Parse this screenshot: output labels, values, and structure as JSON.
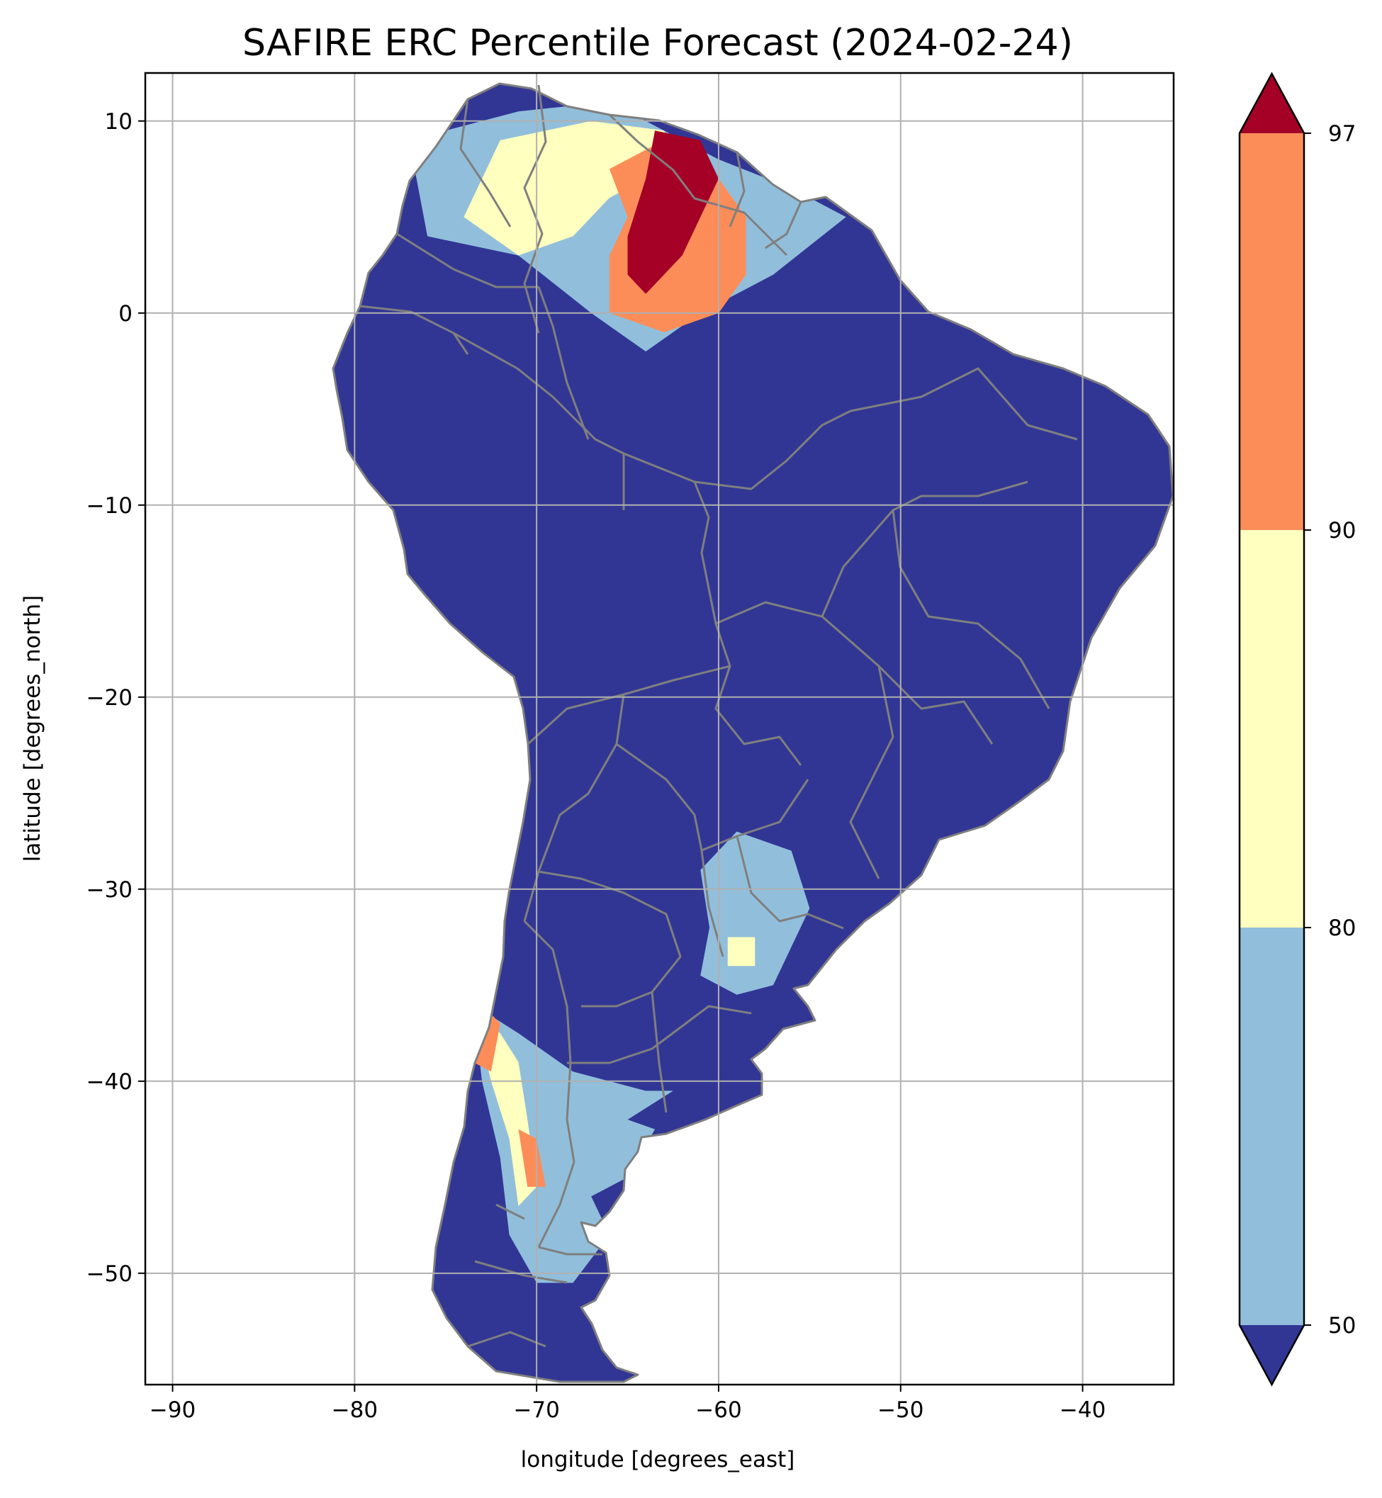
{
  "title": "SAFIRE ERC Percentile Forecast (2024-02-24)",
  "axes": {
    "xlabel": "longitude [degrees_east]",
    "ylabel": "latitude [degrees_north]",
    "xlim": [
      -91.5,
      -35
    ],
    "ylim": [
      -55.8,
      12.5
    ],
    "xticks": [
      -90,
      -80,
      -70,
      -60,
      -50,
      -40
    ],
    "yticks": [
      10,
      0,
      -10,
      -20,
      -30,
      -40,
      -50
    ],
    "xtick_labels": [
      "−90",
      "−80",
      "−70",
      "−60",
      "−50",
      "−40"
    ],
    "ytick_labels": [
      "10",
      "0",
      "−10",
      "−20",
      "−30",
      "−40",
      "−50"
    ],
    "grid": true
  },
  "colorbar": {
    "tick_labels": [
      "50",
      "80",
      "90",
      "97"
    ],
    "levels": [
      50,
      80,
      90,
      97
    ],
    "extend": "both",
    "colors": {
      "below_50": "#313695",
      "50_80": "#91bfdb",
      "80_90": "#ffffbf",
      "90_97": "#fc8d59",
      "above_97": "#a50026"
    }
  },
  "map": {
    "region": "South America",
    "border_color": "#7f7f7f",
    "land_base_color": "#313695",
    "features": [
      {
        "category": "50-80",
        "color": "#91bfdb",
        "lon_lat": [
          [
            -77,
            9
          ],
          [
            -71,
            10.5
          ],
          [
            -66,
            11
          ],
          [
            -60,
            8
          ],
          [
            -56,
            6.5
          ],
          [
            -53,
            5
          ],
          [
            -57,
            2
          ],
          [
            -61,
            0
          ],
          [
            -64,
            -2
          ],
          [
            -67,
            0
          ],
          [
            -71,
            3
          ],
          [
            -76,
            4
          ]
        ]
      },
      {
        "category": "80-90",
        "color": "#ffffbf",
        "lon_lat": [
          [
            -74,
            5
          ],
          [
            -72,
            9
          ],
          [
            -67,
            10
          ],
          [
            -63,
            9.5
          ],
          [
            -62,
            8
          ],
          [
            -66,
            6
          ],
          [
            -68,
            4
          ],
          [
            -71,
            3
          ]
        ]
      },
      {
        "category": "90-97",
        "color": "#fc8d59",
        "lon_lat": [
          [
            -66,
            7.5
          ],
          [
            -63,
            9
          ],
          [
            -60,
            7
          ],
          [
            -58.5,
            5
          ],
          [
            -58.5,
            2
          ],
          [
            -60,
            0
          ],
          [
            -63,
            -1
          ],
          [
            -66,
            0
          ],
          [
            -66,
            3
          ],
          [
            -65,
            5
          ]
        ]
      },
      {
        "category": ">97",
        "color": "#a50026",
        "lon_lat": [
          [
            -63.5,
            9.5
          ],
          [
            -61,
            9
          ],
          [
            -60,
            7
          ],
          [
            -61,
            5
          ],
          [
            -62,
            3
          ],
          [
            -64,
            1
          ],
          [
            -65,
            2
          ],
          [
            -65,
            4
          ],
          [
            -64,
            7
          ]
        ]
      },
      {
        "category": "50-80",
        "color": "#91bfdb",
        "lon_lat": [
          [
            -59,
            -27
          ],
          [
            -56,
            -28
          ],
          [
            -55,
            -31
          ],
          [
            -56,
            -33
          ],
          [
            -57,
            -35
          ],
          [
            -59,
            -35.5
          ],
          [
            -61,
            -34.5
          ],
          [
            -60.5,
            -32
          ],
          [
            -61,
            -29
          ]
        ]
      },
      {
        "category": "80-90",
        "color": "#ffffbf",
        "lon_lat": [
          [
            -59.5,
            -32.5
          ],
          [
            -58,
            -32.5
          ],
          [
            -58,
            -34
          ],
          [
            -59.5,
            -34
          ]
        ]
      },
      {
        "category": "50-80",
        "color": "#91bfdb",
        "lon_lat": [
          [
            -73.5,
            -36
          ],
          [
            -71,
            -37.5
          ],
          [
            -68,
            -39.5
          ],
          [
            -64,
            -40.5
          ],
          [
            -62.5,
            -40.5
          ],
          [
            -65,
            -42
          ],
          [
            -63.5,
            -42.5
          ],
          [
            -65,
            -45
          ],
          [
            -67,
            -46
          ],
          [
            -66,
            -48
          ],
          [
            -68,
            -50.5
          ],
          [
            -70,
            -50.5
          ],
          [
            -71.5,
            -48
          ],
          [
            -72,
            -44
          ],
          [
            -73,
            -40
          ]
        ]
      },
      {
        "category": "80-90",
        "color": "#ffffbf",
        "lon_lat": [
          [
            -73.5,
            -36
          ],
          [
            -72,
            -37.5
          ],
          [
            -71,
            -39
          ],
          [
            -70.5,
            -42
          ],
          [
            -70,
            -45.5
          ],
          [
            -71,
            -46.5
          ],
          [
            -71.5,
            -43
          ],
          [
            -72.5,
            -40
          ]
        ]
      },
      {
        "category": "90-97",
        "color": "#fc8d59",
        "lon_lat": [
          [
            -73,
            -36
          ],
          [
            -72,
            -37
          ],
          [
            -72.5,
            -39.5
          ],
          [
            -73.5,
            -39
          ]
        ]
      },
      {
        "category": "90-97",
        "color": "#fc8d59",
        "lon_lat": [
          [
            -71,
            -42.5
          ],
          [
            -70,
            -43
          ],
          [
            -69.5,
            -45.5
          ],
          [
            -70.5,
            -45.5
          ]
        ]
      }
    ]
  }
}
